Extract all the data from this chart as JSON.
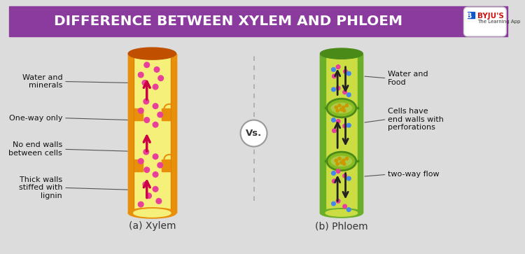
{
  "title": "DIFFERENCE BETWEEN XYLEM AND PHLOEM",
  "title_bg": "#8B3A9E",
  "title_color": "#FFFFFF",
  "bg_color": "#DCDCDC",
  "xylem_label": "(a) Xylem",
  "phloem_label": "(b) Phloem",
  "vs_text": "Vs.",
  "xylem_outer_color": "#E8900A",
  "xylem_inner_color": "#F5F07A",
  "xylem_top_color": "#C05000",
  "xylem_wall_color": "#D4780A",
  "phloem_outer_color": "#6AAF28",
  "phloem_inner_color": "#CCDD44",
  "phloem_top_color": "#4A8A18",
  "phloem_cell_color": "#88BB22",
  "phloem_cell_inner": "#AACC44",
  "arrow_color_xylem": "#CC0044",
  "arrow_color_phloem": "#222222",
  "dot_color_xylem": "#E8409A",
  "dot_color_phloem_pink": "#E8409A",
  "dot_color_phloem_blue": "#4488EE",
  "xylem_labels": [
    "Water and\nminerals",
    "One-way only",
    "No end walls\nbetween cells",
    "Thick walls\nstiffed with\nlignin"
  ],
  "phloem_labels": [
    "Water and\nFood",
    "Cells have\nend walls with\nperforations",
    "two-way flow"
  ],
  "label_fontsize": 8,
  "subtitle_fontsize": 10,
  "line_color": "#555555"
}
